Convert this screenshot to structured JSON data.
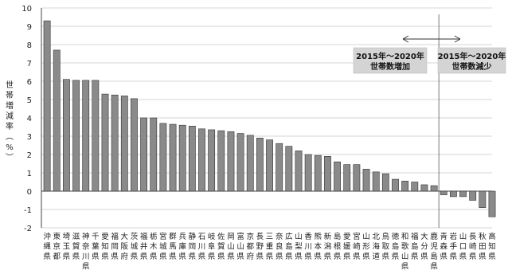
{
  "chart_data": {
    "type": "bar",
    "ylabel": "世帯増減率（%）",
    "ylim": [
      -2,
      10
    ],
    "yticks": [
      -2,
      -1,
      0,
      1,
      2,
      3,
      4,
      5,
      6,
      7,
      8,
      9,
      10
    ],
    "grid": "horizontal",
    "categories": [
      "沖縄県",
      "東京都",
      "埼玉県",
      "滋賀県",
      "神奈川県",
      "千葉県",
      "愛知県",
      "福岡県",
      "大阪府",
      "茨城県",
      "福井県",
      "栃木県",
      "宮城県",
      "群馬県",
      "兵庫県",
      "静岡県",
      "石川県",
      "岐阜県",
      "佐賀県",
      "岡山県",
      "富山県",
      "京都府",
      "長野県",
      "三重県",
      "奈良県",
      "広島県",
      "山梨県",
      "香川県",
      "熊本県",
      "新潟県",
      "島根県",
      "愛媛県",
      "宮崎県",
      "山形県",
      "北海道",
      "鳥取県",
      "徳島県",
      "和歌山県",
      "福島県",
      "大分県",
      "鹿児島県",
      "青森県",
      "岩手県",
      "山口県",
      "長崎県",
      "秋田県",
      "高知県"
    ],
    "values": [
      9.3,
      7.7,
      6.1,
      6.05,
      6.05,
      6.05,
      5.3,
      5.25,
      5.2,
      5.05,
      4.0,
      4.0,
      3.7,
      3.65,
      3.6,
      3.55,
      3.4,
      3.35,
      3.3,
      3.25,
      3.15,
      3.05,
      2.9,
      2.8,
      2.6,
      2.45,
      2.2,
      2.0,
      1.95,
      1.9,
      1.6,
      1.45,
      1.45,
      1.2,
      1.05,
      0.95,
      0.65,
      0.55,
      0.5,
      0.35,
      0.3,
      -0.2,
      -0.3,
      -0.3,
      -0.5,
      -0.9,
      -1.4
    ],
    "bar_color": "#8a8a8a",
    "edge_color": "#333333",
    "annotations": {
      "increase": "2015年～2020年\n世帯数増加",
      "decrease": "2015年～2020年\n世帯数減少"
    }
  }
}
